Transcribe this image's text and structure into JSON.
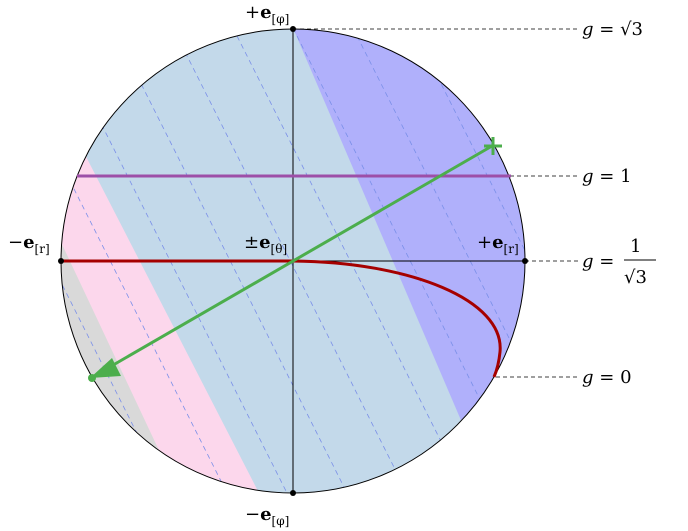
{
  "labels": {
    "top_sign": "+",
    "top_base": "e",
    "top_sub": "[φ]",
    "bottom_sign": "−",
    "bottom_base": "e",
    "bottom_sub": "[φ]",
    "left_sign": "−",
    "left_base": "e",
    "left_sub": "[r]",
    "right_sign": "+",
    "right_base": "e",
    "right_sub": "[r]",
    "center_sign": "±",
    "center_base": "e",
    "center_sub": "[θ]"
  },
  "g_levels": {
    "sqrt3": {
      "lhs": "g =",
      "rhs": "√3"
    },
    "one": {
      "lhs": "g =",
      "rhs": "1"
    },
    "inv_sqrt3": {
      "lhs": "g =",
      "num": "1",
      "den": "√3"
    },
    "zero": {
      "lhs": "g =",
      "rhs": "0"
    }
  },
  "colors": {
    "light_blue": "#c3d9ea",
    "blue": "#b0b0fb",
    "pink": "#fcd7ec",
    "gray": "#d9d9d9",
    "purple": "#9d4fa8",
    "dark_red": "#a50000",
    "green": "#4cae4c",
    "dash_blue": "#7a8fe8"
  }
}
